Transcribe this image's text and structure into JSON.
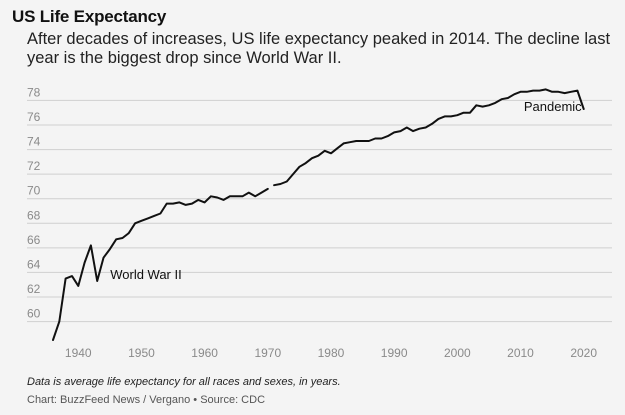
{
  "header": {
    "title": "US Life Expectancy",
    "subtitle": "After decades of increases, US life expectancy peaked in 2014. The decline last year is the biggest drop since World War II."
  },
  "footer": {
    "note": "Data is average life expectancy for all races and sexes, in years.",
    "source": "Chart: BuzzFeed News / Vergano • Source: CDC"
  },
  "colors": {
    "line": "#111111",
    "grid": "#cfcfcf",
    "tick": "#8a8a8a",
    "background": "#f4f4f4"
  },
  "chart_data": {
    "type": "line",
    "title": "US Life Expectancy",
    "xlabel": "",
    "ylabel": "",
    "xlim": [
      1936,
      2021
    ],
    "ylim": [
      58.5,
      79.5
    ],
    "xticks": [
      1940,
      1950,
      1960,
      1970,
      1980,
      1990,
      2000,
      2010,
      2020
    ],
    "yticks": [
      60,
      62,
      64,
      66,
      68,
      70,
      72,
      74,
      76,
      78
    ],
    "grid": true,
    "annotations": [
      {
        "text": "World War II",
        "x": 1943,
        "y": 63.3
      },
      {
        "text": "Pandemic",
        "x": 2020,
        "y": 77.3
      }
    ],
    "segments": [
      {
        "x": [
          1936,
          1937,
          1938,
          1939,
          1940,
          1941,
          1942,
          1943,
          1944,
          1945,
          1946,
          1947,
          1948,
          1949,
          1950,
          1951,
          1952,
          1953,
          1954,
          1955,
          1956,
          1957,
          1958,
          1959,
          1960,
          1961,
          1962,
          1963,
          1964,
          1965,
          1966,
          1967,
          1968,
          1969,
          1970
        ],
        "y": [
          58.5,
          60.0,
          63.5,
          63.7,
          62.9,
          64.8,
          66.2,
          63.3,
          65.2,
          65.9,
          66.7,
          66.8,
          67.2,
          68.0,
          68.2,
          68.4,
          68.6,
          68.8,
          69.6,
          69.6,
          69.7,
          69.5,
          69.6,
          69.9,
          69.7,
          70.2,
          70.1,
          69.9,
          70.2,
          70.2,
          70.2,
          70.5,
          70.2,
          70.5,
          70.8
        ]
      },
      {
        "x": [
          1971,
          1972,
          1973,
          1974,
          1975,
          1976,
          1977,
          1978,
          1979,
          1980,
          1981,
          1982,
          1983,
          1984,
          1985,
          1986,
          1987,
          1988,
          1989,
          1990,
          1991,
          1992,
          1993,
          1994,
          1995,
          1996,
          1997,
          1998,
          1999,
          2000,
          2001,
          2002,
          2003,
          2004,
          2005,
          2006,
          2007,
          2008,
          2009,
          2010,
          2011,
          2012,
          2013,
          2014,
          2015,
          2016,
          2017,
          2018,
          2019,
          2020
        ],
        "y": [
          71.1,
          71.2,
          71.4,
          72.0,
          72.6,
          72.9,
          73.3,
          73.5,
          73.9,
          73.7,
          74.1,
          74.5,
          74.6,
          74.7,
          74.7,
          74.7,
          74.9,
          74.9,
          75.1,
          75.4,
          75.5,
          75.8,
          75.5,
          75.7,
          75.8,
          76.1,
          76.5,
          76.7,
          76.7,
          76.8,
          77.0,
          77.0,
          77.6,
          77.5,
          77.6,
          77.8,
          78.1,
          78.2,
          78.5,
          78.7,
          78.7,
          78.8,
          78.8,
          78.9,
          78.7,
          78.7,
          78.6,
          78.7,
          78.8,
          77.3
        ]
      }
    ]
  }
}
